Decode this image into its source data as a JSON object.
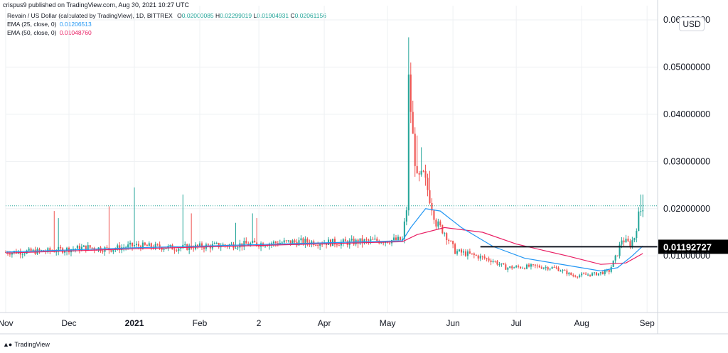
{
  "header": {
    "published_text": "crispus9 published on TradingView.com, Aug 30, 2021 10:27 UTC"
  },
  "legend": {
    "title": "Revain / US Dollar (calculated by TradingView), 1D, BITTREX",
    "ohlc": [
      {
        "label": "O",
        "value": "0.02000085"
      },
      {
        "label": "H",
        "value": "0.02299019"
      },
      {
        "label": "L",
        "value": "0.01904931"
      },
      {
        "label": "C",
        "value": "0.02061156"
      }
    ],
    "ema25": {
      "label": "EMA (25, close, 0)",
      "value": "0.01206513",
      "color": "#2196f3"
    },
    "ema50": {
      "label": "EMA (50, close, 0)",
      "value": "0.01048760",
      "color": "#e91e63"
    }
  },
  "currency_badge": "USD",
  "footer": {
    "brand": "TradingView"
  },
  "colors": {
    "up": "#26a69a",
    "down": "#ef5350",
    "grid": "#eef0f3",
    "axis_border": "#d1d4dc",
    "last_price_line": "#26a69a",
    "horizontal_line": "#131722",
    "price_label_bg": "#000000"
  },
  "chart_data": {
    "type": "candlestick",
    "symbol": "Revain / US Dollar",
    "interval": "1D",
    "exchange": "BITTREX",
    "x_tick_labels": [
      {
        "label": "Nov",
        "date": "2020-11-01"
      },
      {
        "label": "Dec",
        "date": "2020-12-01"
      },
      {
        "label": "2021",
        "date": "2021-01-01"
      },
      {
        "label": "Feb",
        "date": "2021-02-01"
      },
      {
        "label": "2",
        "date": "2021-03-01"
      },
      {
        "label": "Apr",
        "date": "2021-04-01"
      },
      {
        "label": "May",
        "date": "2021-05-01"
      },
      {
        "label": "Jun",
        "date": "2021-06-01"
      },
      {
        "label": "Jul",
        "date": "2021-07-01"
      },
      {
        "label": "Aug",
        "date": "2021-08-01"
      },
      {
        "label": "Sep",
        "date": "2021-09-01"
      }
    ],
    "x_range": [
      "2020-11-01",
      "2021-09-06"
    ],
    "y_tick_labels": [
      "0.06000000",
      "0.05000000",
      "0.04000000",
      "0.03000000",
      "0.02000000",
      "0.01000000"
    ],
    "y_ticks": [
      0.06,
      0.05,
      0.04,
      0.03,
      0.02,
      0.01
    ],
    "ylim": [
      -0.002,
      0.063
    ],
    "horizontal_line": {
      "value": 0.01192727,
      "label": "0.01192727",
      "from_date": "2021-06-14"
    },
    "last_price": 0.02061156,
    "anchors": [
      {
        "date": "2020-11-01",
        "close": 0.0108
      },
      {
        "date": "2020-11-20",
        "close": 0.011
      },
      {
        "date": "2020-12-10",
        "close": 0.0118
      },
      {
        "date": "2020-12-20",
        "close": 0.0114
      },
      {
        "date": "2021-01-01",
        "close": 0.0122
      },
      {
        "date": "2021-01-20",
        "close": 0.0117
      },
      {
        "date": "2021-02-10",
        "close": 0.0122
      },
      {
        "date": "2021-03-01",
        "close": 0.0126
      },
      {
        "date": "2021-03-20",
        "close": 0.013
      },
      {
        "date": "2021-04-10",
        "close": 0.0128
      },
      {
        "date": "2021-04-25",
        "close": 0.0132
      },
      {
        "date": "2021-05-08",
        "close": 0.0134
      },
      {
        "date": "2021-05-10",
        "close": 0.02
      },
      {
        "date": "2021-05-11",
        "close": 0.047
      },
      {
        "date": "2021-05-13",
        "close": 0.035
      },
      {
        "date": "2021-05-15",
        "close": 0.026
      },
      {
        "date": "2021-05-18",
        "close": 0.027
      },
      {
        "date": "2021-05-20",
        "close": 0.024
      },
      {
        "date": "2021-05-24",
        "close": 0.017
      },
      {
        "date": "2021-05-28",
        "close": 0.015
      },
      {
        "date": "2021-06-02",
        "close": 0.011
      },
      {
        "date": "2021-06-12",
        "close": 0.01
      },
      {
        "date": "2021-06-20",
        "close": 0.009
      },
      {
        "date": "2021-06-26",
        "close": 0.0075
      },
      {
        "date": "2021-07-10",
        "close": 0.0078
      },
      {
        "date": "2021-07-20",
        "close": 0.0074
      },
      {
        "date": "2021-07-28",
        "close": 0.0058
      },
      {
        "date": "2021-08-08",
        "close": 0.0062
      },
      {
        "date": "2021-08-14",
        "close": 0.0068
      },
      {
        "date": "2021-08-18",
        "close": 0.0105
      },
      {
        "date": "2021-08-20",
        "close": 0.0135
      },
      {
        "date": "2021-08-24",
        "close": 0.0125
      },
      {
        "date": "2021-08-26",
        "close": 0.014
      },
      {
        "date": "2021-08-28",
        "close": 0.0185
      },
      {
        "date": "2021-08-30",
        "close": 0.0206
      }
    ],
    "ema25_points": [
      {
        "date": "2020-11-01",
        "value": 0.0108
      },
      {
        "date": "2021-01-01",
        "value": 0.0117
      },
      {
        "date": "2021-03-01",
        "value": 0.0124
      },
      {
        "date": "2021-05-08",
        "value": 0.0132
      },
      {
        "date": "2021-05-12",
        "value": 0.016
      },
      {
        "date": "2021-05-19",
        "value": 0.02
      },
      {
        "date": "2021-05-26",
        "value": 0.0195
      },
      {
        "date": "2021-06-05",
        "value": 0.016
      },
      {
        "date": "2021-06-20",
        "value": 0.012
      },
      {
        "date": "2021-07-05",
        "value": 0.0095
      },
      {
        "date": "2021-07-25",
        "value": 0.008
      },
      {
        "date": "2021-08-10",
        "value": 0.0068
      },
      {
        "date": "2021-08-18",
        "value": 0.0075
      },
      {
        "date": "2021-08-25",
        "value": 0.01
      },
      {
        "date": "2021-08-30",
        "value": 0.0121
      }
    ],
    "ema50_points": [
      {
        "date": "2020-11-01",
        "value": 0.0106
      },
      {
        "date": "2021-01-01",
        "value": 0.0115
      },
      {
        "date": "2021-03-01",
        "value": 0.0122
      },
      {
        "date": "2021-05-08",
        "value": 0.013
      },
      {
        "date": "2021-05-15",
        "value": 0.0145
      },
      {
        "date": "2021-05-28",
        "value": 0.016
      },
      {
        "date": "2021-06-15",
        "value": 0.015
      },
      {
        "date": "2021-07-01",
        "value": 0.0125
      },
      {
        "date": "2021-07-25",
        "value": 0.01
      },
      {
        "date": "2021-08-10",
        "value": 0.0082
      },
      {
        "date": "2021-08-22",
        "value": 0.0085
      },
      {
        "date": "2021-08-30",
        "value": 0.0105
      }
    ],
    "spikes": [
      {
        "date": "2020-11-24",
        "high": 0.0195
      },
      {
        "date": "2020-11-26",
        "high": 0.018
      },
      {
        "date": "2020-12-20",
        "high": 0.0205
      },
      {
        "date": "2021-01-01",
        "high": 0.0245
      },
      {
        "date": "2021-01-24",
        "high": 0.023
      },
      {
        "date": "2021-01-28",
        "high": 0.019
      },
      {
        "date": "2021-02-18",
        "high": 0.017
      },
      {
        "date": "2021-02-26",
        "high": 0.019
      },
      {
        "date": "2021-02-28",
        "high": 0.018
      },
      {
        "date": "2021-05-11",
        "high": 0.0563
      },
      {
        "date": "2021-05-12",
        "high": 0.05
      },
      {
        "date": "2021-05-15",
        "high": 0.0355
      },
      {
        "date": "2021-05-17",
        "high": 0.033
      },
      {
        "date": "2021-05-19",
        "high": 0.029
      },
      {
        "date": "2021-05-21",
        "high": 0.028
      },
      {
        "date": "2021-08-29",
        "high": 0.023
      },
      {
        "date": "2021-08-30",
        "high": 0.023
      }
    ]
  }
}
